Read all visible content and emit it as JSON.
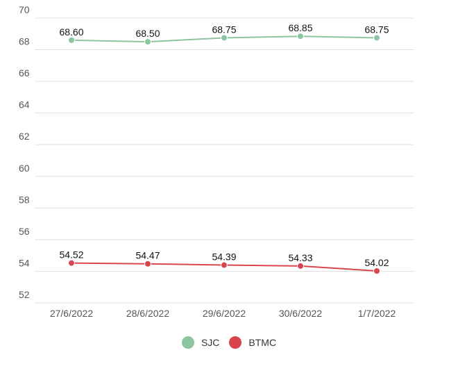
{
  "chart_data": {
    "type": "line",
    "categories": [
      "27/6/2022",
      "28/6/2022",
      "29/6/2022",
      "30/6/2022",
      "1/7/2022"
    ],
    "ylim": [
      52,
      70
    ],
    "yticks": [
      "52",
      "54",
      "56",
      "58",
      "60",
      "62",
      "64",
      "66",
      "68",
      "70"
    ],
    "grid": true,
    "legend_position": "bottom-center",
    "series": [
      {
        "name": "SJC",
        "color": "#8cc5a0",
        "values": [
          68.6,
          68.5,
          68.75,
          68.85,
          68.75
        ],
        "labels": [
          "68.60",
          "68.50",
          "68.75",
          "68.85",
          "68.75"
        ]
      },
      {
        "name": "BTMC",
        "color": "#d9444d",
        "values": [
          54.52,
          54.47,
          54.39,
          54.33,
          54.02
        ],
        "labels": [
          "54.52",
          "54.47",
          "54.39",
          "54.33",
          "54.02"
        ]
      }
    ]
  }
}
